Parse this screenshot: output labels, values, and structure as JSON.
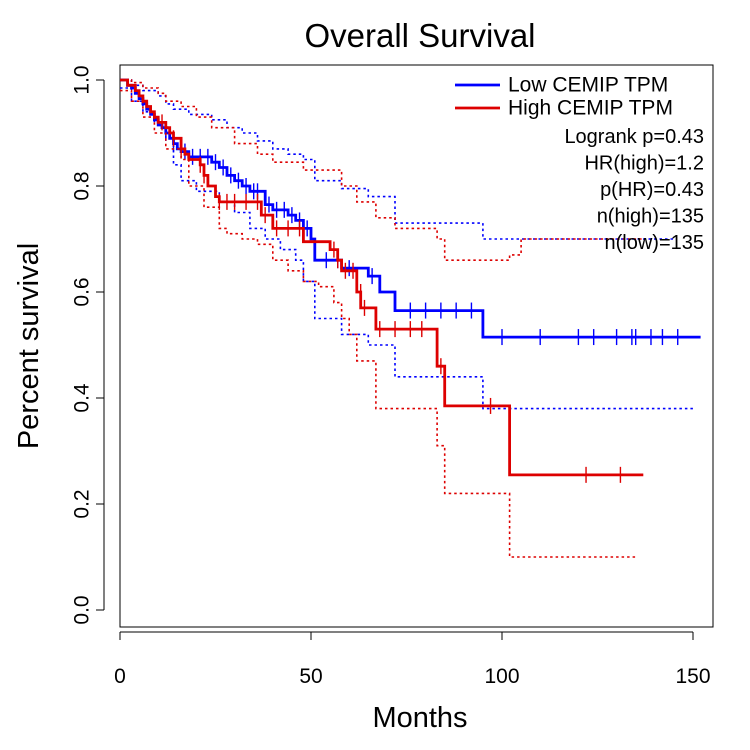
{
  "chart_data": {
    "type": "line",
    "title": "Overall Survival",
    "xlabel": "Months",
    "ylabel": "Percent survival",
    "xlim": [
      0,
      150
    ],
    "ylim": [
      0,
      1
    ],
    "x_ticks": [
      "0",
      "50",
      "100",
      "150"
    ],
    "y_ticks": [
      "0.0",
      "0.2",
      "0.4",
      "0.6",
      "0.8",
      "1.0"
    ],
    "grid": false,
    "legend_position": "top-right",
    "legend": [
      {
        "label": "Low CEMIP TPM",
        "color": "#0000ff"
      },
      {
        "label": "High CEMIP TPM",
        "color": "#dd0000"
      }
    ],
    "annotations": [
      "Logrank p=0.43",
      "HR(high)=1.2",
      "p(HR)=0.43",
      "n(high)=135",
      "n(low)=135"
    ],
    "series": [
      {
        "color": "#0000ff",
        "steps": [
          [
            0,
            1.0
          ],
          [
            2,
            0.99
          ],
          [
            3,
            0.985
          ],
          [
            4,
            0.975
          ],
          [
            5,
            0.965
          ],
          [
            6,
            0.955
          ],
          [
            7,
            0.945
          ],
          [
            8,
            0.935
          ],
          [
            9,
            0.925
          ],
          [
            10,
            0.915
          ],
          [
            11,
            0.91
          ],
          [
            12,
            0.9
          ],
          [
            13,
            0.89
          ],
          [
            14,
            0.88
          ],
          [
            15,
            0.87
          ],
          [
            16,
            0.865
          ],
          [
            18,
            0.855
          ],
          [
            24,
            0.845
          ],
          [
            26,
            0.835
          ],
          [
            28,
            0.82
          ],
          [
            30,
            0.81
          ],
          [
            32,
            0.8
          ],
          [
            34,
            0.79
          ],
          [
            38,
            0.765
          ],
          [
            40,
            0.755
          ],
          [
            44,
            0.745
          ],
          [
            46,
            0.735
          ],
          [
            48,
            0.72
          ],
          [
            50,
            0.7
          ],
          [
            51,
            0.66
          ],
          [
            58,
            0.645
          ],
          [
            65,
            0.63
          ],
          [
            68,
            0.6
          ],
          [
            72,
            0.565
          ],
          [
            95,
            0.515
          ],
          [
            152,
            0.515
          ]
        ],
        "censors": [
          [
            12,
            0.9
          ],
          [
            14,
            0.88
          ],
          [
            17,
            0.865
          ],
          [
            19,
            0.855
          ],
          [
            21,
            0.855
          ],
          [
            23,
            0.855
          ],
          [
            25,
            0.845
          ],
          [
            27,
            0.835
          ],
          [
            29,
            0.82
          ],
          [
            31,
            0.81
          ],
          [
            33,
            0.8
          ],
          [
            35,
            0.79
          ],
          [
            36,
            0.79
          ],
          [
            39,
            0.765
          ],
          [
            41,
            0.755
          ],
          [
            43,
            0.755
          ],
          [
            45,
            0.745
          ],
          [
            47,
            0.735
          ],
          [
            49,
            0.72
          ],
          [
            54,
            0.66
          ],
          [
            57,
            0.66
          ],
          [
            60,
            0.645
          ],
          [
            66,
            0.63
          ],
          [
            76,
            0.565
          ],
          [
            80,
            0.565
          ],
          [
            84,
            0.565
          ],
          [
            88,
            0.565
          ],
          [
            92,
            0.565
          ],
          [
            100,
            0.515
          ],
          [
            110,
            0.515
          ],
          [
            120,
            0.515
          ],
          [
            124,
            0.515
          ],
          [
            130,
            0.515
          ],
          [
            134,
            0.515
          ],
          [
            135,
            0.515
          ],
          [
            139,
            0.515
          ],
          [
            142,
            0.515
          ],
          [
            146,
            0.515
          ]
        ],
        "ci_upper": [
          [
            0,
            1.0
          ],
          [
            3,
            0.99
          ],
          [
            6,
            0.98
          ],
          [
            10,
            0.97
          ],
          [
            12,
            0.955
          ],
          [
            14,
            0.945
          ],
          [
            18,
            0.935
          ],
          [
            24,
            0.925
          ],
          [
            28,
            0.91
          ],
          [
            32,
            0.9
          ],
          [
            36,
            0.885
          ],
          [
            40,
            0.87
          ],
          [
            44,
            0.86
          ],
          [
            48,
            0.85
          ],
          [
            51,
            0.81
          ],
          [
            58,
            0.795
          ],
          [
            65,
            0.78
          ],
          [
            72,
            0.73
          ],
          [
            95,
            0.7
          ],
          [
            145,
            0.7
          ]
        ],
        "ci_lower": [
          [
            0,
            0.985
          ],
          [
            3,
            0.96
          ],
          [
            6,
            0.94
          ],
          [
            9,
            0.92
          ],
          [
            12,
            0.89
          ],
          [
            14,
            0.84
          ],
          [
            16,
            0.81
          ],
          [
            20,
            0.79
          ],
          [
            26,
            0.77
          ],
          [
            30,
            0.75
          ],
          [
            34,
            0.72
          ],
          [
            38,
            0.7
          ],
          [
            42,
            0.68
          ],
          [
            46,
            0.66
          ],
          [
            48,
            0.62
          ],
          [
            51,
            0.55
          ],
          [
            58,
            0.52
          ],
          [
            65,
            0.5
          ],
          [
            72,
            0.44
          ],
          [
            95,
            0.38
          ],
          [
            150,
            0.38
          ]
        ]
      },
      {
        "color": "#dd0000",
        "steps": [
          [
            0,
            1.0
          ],
          [
            2,
            0.99
          ],
          [
            4,
            0.98
          ],
          [
            5,
            0.97
          ],
          [
            6,
            0.96
          ],
          [
            7,
            0.95
          ],
          [
            8,
            0.94
          ],
          [
            9,
            0.93
          ],
          [
            10,
            0.92
          ],
          [
            12,
            0.91
          ],
          [
            13,
            0.9
          ],
          [
            14,
            0.89
          ],
          [
            16,
            0.87
          ],
          [
            17,
            0.86
          ],
          [
            18,
            0.85
          ],
          [
            21,
            0.84
          ],
          [
            22,
            0.82
          ],
          [
            23,
            0.8
          ],
          [
            25,
            0.78
          ],
          [
            26,
            0.77
          ],
          [
            37,
            0.745
          ],
          [
            40,
            0.72
          ],
          [
            48,
            0.695
          ],
          [
            55,
            0.68
          ],
          [
            57,
            0.66
          ],
          [
            58,
            0.64
          ],
          [
            62,
            0.6
          ],
          [
            63,
            0.57
          ],
          [
            67,
            0.53
          ],
          [
            83,
            0.46
          ],
          [
            85,
            0.385
          ],
          [
            102,
            0.255
          ],
          [
            137,
            0.255
          ]
        ],
        "censors": [
          [
            11,
            0.92
          ],
          [
            14,
            0.89
          ],
          [
            16,
            0.87
          ],
          [
            21,
            0.84
          ],
          [
            22,
            0.82
          ],
          [
            26,
            0.77
          ],
          [
            28,
            0.77
          ],
          [
            30,
            0.77
          ],
          [
            33,
            0.77
          ],
          [
            36,
            0.77
          ],
          [
            38,
            0.745
          ],
          [
            41,
            0.72
          ],
          [
            44,
            0.72
          ],
          [
            47,
            0.72
          ],
          [
            56,
            0.68
          ],
          [
            57,
            0.66
          ],
          [
            59,
            0.64
          ],
          [
            61,
            0.64
          ],
          [
            63,
            0.6
          ],
          [
            64,
            0.57
          ],
          [
            68,
            0.53
          ],
          [
            72,
            0.53
          ],
          [
            76,
            0.53
          ],
          [
            79,
            0.53
          ],
          [
            84,
            0.46
          ],
          [
            97,
            0.385
          ],
          [
            122,
            0.255
          ],
          [
            131,
            0.255
          ]
        ],
        "ci_upper": [
          [
            0,
            1.0
          ],
          [
            3,
            0.995
          ],
          [
            6,
            0.985
          ],
          [
            10,
            0.975
          ],
          [
            12,
            0.96
          ],
          [
            16,
            0.95
          ],
          [
            20,
            0.93
          ],
          [
            24,
            0.91
          ],
          [
            30,
            0.88
          ],
          [
            36,
            0.86
          ],
          [
            40,
            0.845
          ],
          [
            48,
            0.83
          ],
          [
            58,
            0.8
          ],
          [
            62,
            0.77
          ],
          [
            67,
            0.74
          ],
          [
            72,
            0.72
          ],
          [
            83,
            0.7
          ],
          [
            85,
            0.66
          ],
          [
            102,
            0.67
          ],
          [
            105,
            0.7
          ],
          [
            137,
            0.7
          ]
        ],
        "ci_lower": [
          [
            0,
            0.98
          ],
          [
            3,
            0.96
          ],
          [
            6,
            0.93
          ],
          [
            9,
            0.9
          ],
          [
            12,
            0.87
          ],
          [
            16,
            0.85
          ],
          [
            18,
            0.8
          ],
          [
            22,
            0.76
          ],
          [
            26,
            0.72
          ],
          [
            28,
            0.71
          ],
          [
            32,
            0.7
          ],
          [
            36,
            0.69
          ],
          [
            40,
            0.66
          ],
          [
            44,
            0.64
          ],
          [
            48,
            0.62
          ],
          [
            52,
            0.61
          ],
          [
            56,
            0.58
          ],
          [
            58,
            0.55
          ],
          [
            60,
            0.52
          ],
          [
            62,
            0.47
          ],
          [
            67,
            0.38
          ],
          [
            83,
            0.31
          ],
          [
            85,
            0.22
          ],
          [
            102,
            0.1
          ],
          [
            135,
            0.1
          ]
        ]
      }
    ]
  }
}
